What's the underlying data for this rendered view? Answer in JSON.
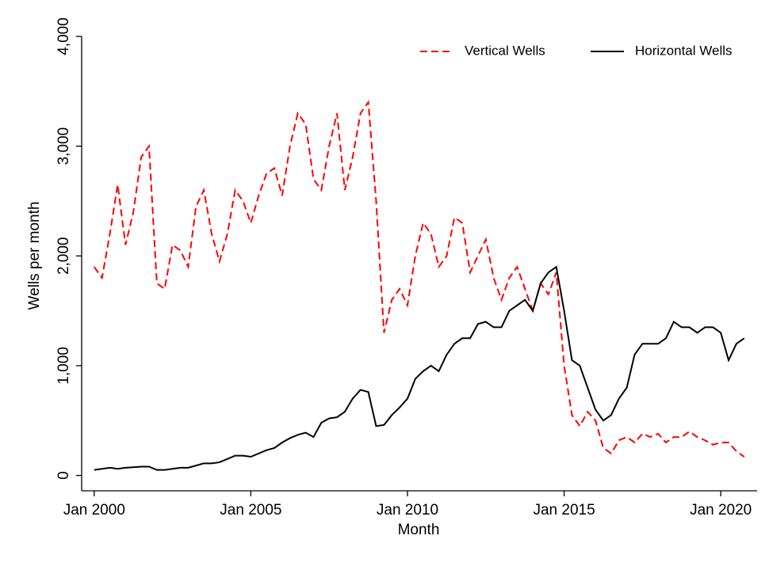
{
  "chart_data": {
    "type": "line",
    "x_label": "Month",
    "y_label": "Wells per month",
    "x": [
      2000,
      2000.25,
      2000.5,
      2000.75,
      2001,
      2001.25,
      2001.5,
      2001.75,
      2002,
      2002.25,
      2002.5,
      2002.75,
      2003,
      2003.25,
      2003.5,
      2003.75,
      2004,
      2004.25,
      2004.5,
      2004.75,
      2005,
      2005.25,
      2005.5,
      2005.75,
      2006,
      2006.25,
      2006.5,
      2006.75,
      2007,
      2007.25,
      2007.5,
      2007.75,
      2008,
      2008.25,
      2008.5,
      2008.75,
      2009,
      2009.25,
      2009.5,
      2009.75,
      2010,
      2010.25,
      2010.5,
      2010.75,
      2011,
      2011.25,
      2011.5,
      2011.75,
      2012,
      2012.25,
      2012.5,
      2012.75,
      2013,
      2013.25,
      2013.5,
      2013.75,
      2014,
      2014.25,
      2014.5,
      2014.75,
      2015,
      2015.25,
      2015.5,
      2015.75,
      2016,
      2016.25,
      2016.5,
      2016.75,
      2017,
      2017.25,
      2017.5,
      2017.75,
      2018,
      2018.25,
      2018.5,
      2018.75,
      2019,
      2019.25,
      2019.5,
      2019.75,
      2020,
      2020.25,
      2020.5,
      2020.75
    ],
    "series": [
      {
        "name": "Vertical Wells",
        "color": "#ff0000",
        "dash": true,
        "values": [
          1900,
          1800,
          2200,
          2650,
          2100,
          2400,
          2900,
          3000,
          1750,
          1700,
          2100,
          2050,
          1900,
          2450,
          2600,
          2200,
          1950,
          2200,
          2600,
          2500,
          2300,
          2550,
          2750,
          2800,
          2550,
          3000,
          3300,
          3200,
          2700,
          2600,
          3000,
          3300,
          2600,
          2900,
          3300,
          3400,
          2500,
          1300,
          1600,
          1700,
          1550,
          2000,
          2300,
          2200,
          1900,
          2000,
          2350,
          2300,
          1850,
          2000,
          2150,
          1800,
          1600,
          1800,
          1900,
          1700,
          1500,
          1750,
          1650,
          1850,
          1000,
          550,
          450,
          580,
          500,
          250,
          200,
          320,
          350,
          300,
          380,
          350,
          380,
          300,
          350,
          350,
          400,
          350,
          320,
          280,
          300,
          300,
          220,
          170
        ]
      },
      {
        "name": "Horizontal Wells",
        "color": "#000000",
        "dash": false,
        "values": [
          50,
          60,
          70,
          60,
          70,
          75,
          80,
          80,
          50,
          50,
          60,
          70,
          70,
          90,
          110,
          110,
          120,
          150,
          180,
          180,
          170,
          200,
          230,
          250,
          300,
          340,
          370,
          390,
          350,
          480,
          520,
          530,
          580,
          700,
          780,
          760,
          450,
          460,
          550,
          620,
          700,
          880,
          950,
          1000,
          950,
          1100,
          1200,
          1250,
          1250,
          1380,
          1400,
          1350,
          1350,
          1500,
          1550,
          1600,
          1500,
          1750,
          1850,
          1900,
          1500,
          1050,
          1000,
          800,
          600,
          500,
          550,
          700,
          800,
          1100,
          1200,
          1200,
          1200,
          1250,
          1400,
          1350,
          1350,
          1300,
          1350,
          1350,
          1300,
          1050,
          1200,
          1250
        ]
      }
    ],
    "xlim": [
      1999.6,
      2021.16
    ],
    "xticks": [
      {
        "value": 2000,
        "label": "Jan 2000"
      },
      {
        "value": 2005,
        "label": "Jan 2005"
      },
      {
        "value": 2010,
        "label": "Jan 2010"
      },
      {
        "value": 2015,
        "label": "Jan 2015"
      },
      {
        "value": 2020,
        "label": "Jan 2020"
      }
    ],
    "ylim": [
      -140,
      4000
    ],
    "yticks": [
      0,
      {
        "value": 1000,
        "label": "1,000"
      },
      {
        "value": 2000,
        "label": "2,000"
      },
      {
        "value": 3000,
        "label": "3,000"
      },
      {
        "value": 4000,
        "label": "4,000"
      }
    ],
    "legend": "top-right",
    "grid": false
  }
}
